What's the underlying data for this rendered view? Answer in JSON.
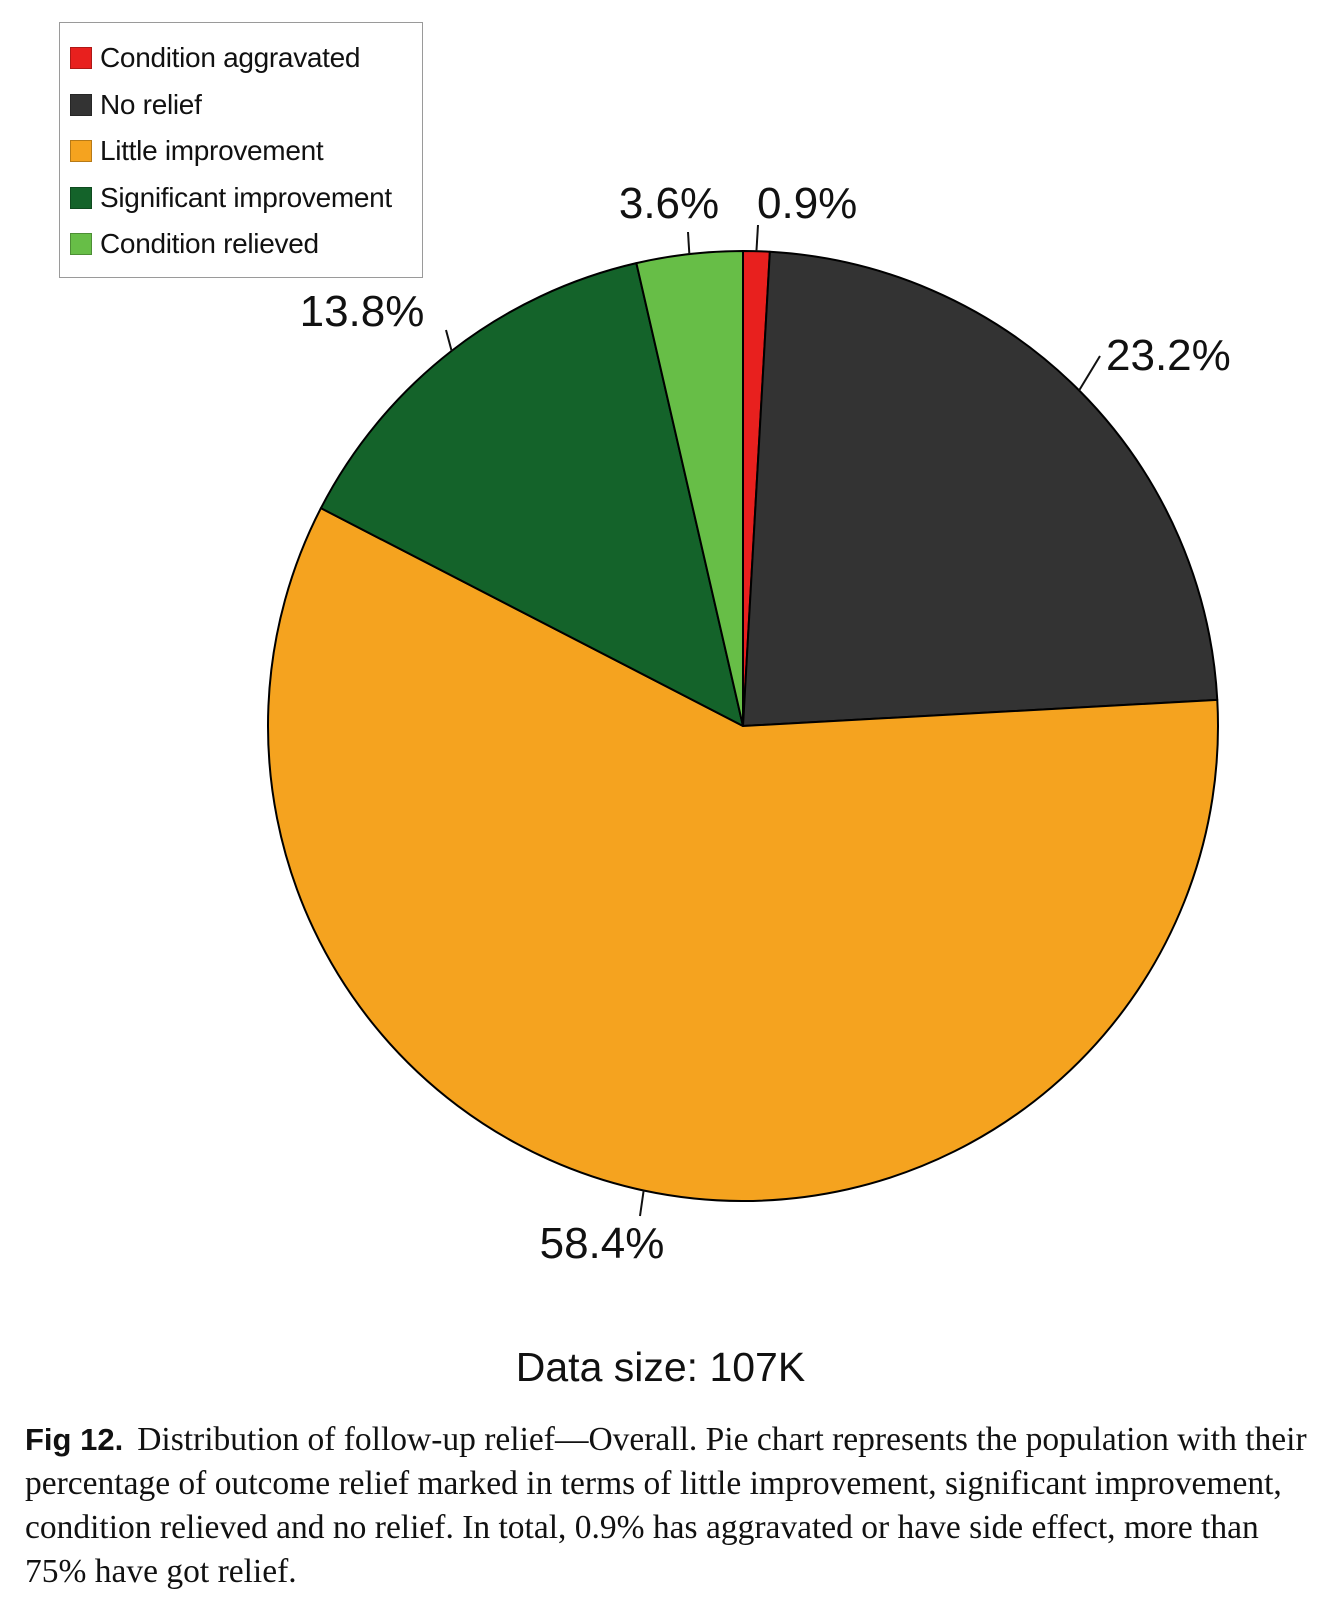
{
  "chart_data": {
    "type": "pie",
    "title": "",
    "categories": [
      "Condition aggravated",
      "No relief",
      "Little improvement",
      "Significant improvement",
      "Condition relieved"
    ],
    "values": [
      0.9,
      23.2,
      58.4,
      13.8,
      3.6
    ],
    "data_labels": [
      "0.9%",
      "23.2%",
      "58.4%",
      "13.8%",
      "3.6%"
    ],
    "colors": [
      "#e8201e",
      "#333333",
      "#f5a31f",
      "#14632a",
      "#67be47"
    ],
    "legend_placement": "top-left",
    "start_angle": "12 o'clock, clockwise"
  },
  "legend": {
    "items": [
      {
        "label": "Condition aggravated",
        "color": "#e8201e"
      },
      {
        "label": "No relief",
        "color": "#333333"
      },
      {
        "label": "Little improvement",
        "color": "#f5a31f"
      },
      {
        "label": "Significant improvement",
        "color": "#14632a"
      },
      {
        "label": "Condition relieved",
        "color": "#67be47"
      }
    ]
  },
  "data_size": "Data size: 107K",
  "caption": {
    "label": "Fig 12.",
    "text": "Distribution of follow-up relief—Overall. Pie chart represents the population with their percentage of outcome relief marked in terms of little improvement, significant improvement, condition relieved and no relief. In total, 0.9% has aggravated or have side effect, more than 75% have got relief."
  }
}
